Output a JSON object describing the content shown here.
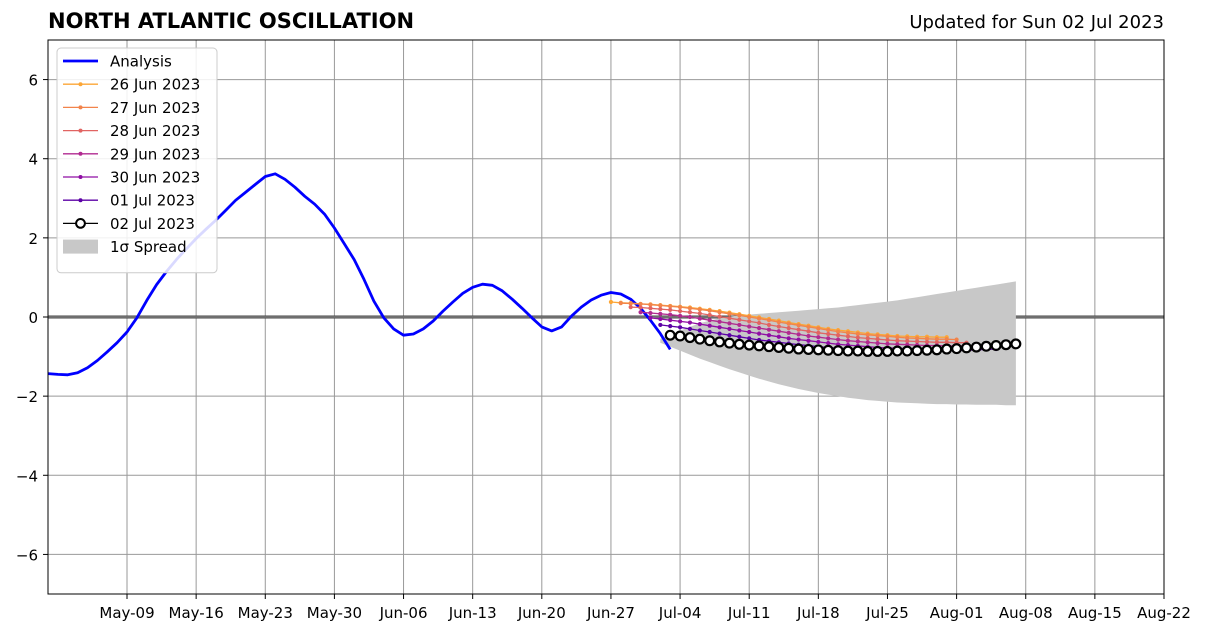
{
  "chart_data": {
    "type": "line",
    "title": "NORTH ATLANTIC OSCILLATION",
    "subtitle": "Updated for Sun 02 Jul 2023",
    "xlabel": "",
    "ylabel": "",
    "ylim": [
      -7,
      7
    ],
    "xlim": [
      "2023-05-01",
      "2023-08-22"
    ],
    "grid": true,
    "legend_position": "top-left",
    "yticks": [
      6,
      4,
      2,
      0,
      -2,
      -4,
      -6
    ],
    "ytick_labels": [
      "6",
      "4",
      "2",
      "0",
      "−2",
      "−4",
      "−6"
    ],
    "xticks": [
      "2023-05-09",
      "2023-05-16",
      "2023-05-23",
      "2023-05-30",
      "2023-06-06",
      "2023-06-13",
      "2023-06-20",
      "2023-06-27",
      "2023-07-04",
      "2023-07-11",
      "2023-07-18",
      "2023-07-25",
      "2023-08-01",
      "2023-08-08",
      "2023-08-15",
      "2023-08-22"
    ],
    "xtick_labels": [
      "May-09",
      "May-16",
      "May-23",
      "May-30",
      "Jun-06",
      "Jun-13",
      "Jun-20",
      "Jun-27",
      "Jul-04",
      "Jul-11",
      "Jul-18",
      "Jul-25",
      "Aug-01",
      "Aug-08",
      "Aug-15",
      "Aug-22"
    ],
    "series": [
      {
        "name": "Analysis",
        "color": "#0000ff",
        "style": "line",
        "start": "2023-05-01",
        "values": [
          -1.43,
          -1.45,
          -1.46,
          -1.41,
          -1.28,
          -1.1,
          -0.88,
          -0.65,
          -0.38,
          -0.02,
          0.42,
          0.82,
          1.15,
          1.45,
          1.72,
          1.98,
          2.22,
          2.45,
          2.7,
          2.95,
          3.15,
          3.35,
          3.55,
          3.62,
          3.48,
          3.28,
          3.05,
          2.85,
          2.6,
          2.25,
          1.85,
          1.45,
          0.95,
          0.4,
          -0.02,
          -0.3,
          -0.46,
          -0.43,
          -0.3,
          -0.1,
          0.15,
          0.38,
          0.6,
          0.75,
          0.83,
          0.8,
          0.66,
          0.45,
          0.22,
          -0.02,
          -0.25,
          -0.35,
          -0.25,
          0.02,
          0.25,
          0.43,
          0.55,
          0.62,
          0.58,
          0.45,
          0.22,
          -0.08,
          -0.42,
          -0.82
        ]
      },
      {
        "name": "26 Jun 2023",
        "color": "#fca636",
        "style": "small-dots",
        "start": "2023-06-27",
        "values": [
          0.38,
          0.36,
          0.35,
          0.33,
          0.32,
          0.3,
          0.28,
          0.26,
          0.24,
          0.21,
          0.18,
          0.15,
          0.11,
          0.07,
          0.03,
          -0.01,
          -0.05,
          -0.09,
          -0.14,
          -0.18,
          -0.22,
          -0.26,
          -0.3,
          -0.33,
          -0.36,
          -0.39,
          -0.42,
          -0.44,
          -0.46,
          -0.48,
          -0.49,
          -0.5,
          -0.5,
          -0.51,
          -0.51
        ]
      },
      {
        "name": "27 Jun 2023",
        "color": "#f2844b",
        "style": "small-dots",
        "start": "2023-06-28",
        "values": [
          0.35,
          0.34,
          0.33,
          0.31,
          0.29,
          0.27,
          0.25,
          0.22,
          0.19,
          0.16,
          0.12,
          0.08,
          0.04,
          0.0,
          -0.04,
          -0.08,
          -0.13,
          -0.17,
          -0.21,
          -0.25,
          -0.29,
          -0.33,
          -0.37,
          -0.4,
          -0.43,
          -0.45,
          -0.47,
          -0.49,
          -0.51,
          -0.53,
          -0.54,
          -0.55,
          -0.56,
          -0.56,
          -0.57
        ]
      },
      {
        "name": "28 Jun 2023",
        "color": "#e16462",
        "style": "small-dots",
        "start": "2023-06-29",
        "values": [
          0.25,
          0.24,
          0.22,
          0.2,
          0.18,
          0.15,
          0.12,
          0.09,
          0.05,
          0.01,
          -0.03,
          -0.07,
          -0.11,
          -0.15,
          -0.2,
          -0.24,
          -0.28,
          -0.32,
          -0.36,
          -0.4,
          -0.43,
          -0.46,
          -0.49,
          -0.52,
          -0.54,
          -0.56,
          -0.58,
          -0.6,
          -0.61,
          -0.62,
          -0.63,
          -0.64,
          -0.64,
          -0.65,
          -0.65
        ]
      },
      {
        "name": "29 Jun 2023",
        "color": "#b12a90",
        "style": "small-dots",
        "start": "2023-06-30",
        "values": [
          0.12,
          0.1,
          0.08,
          0.06,
          0.03,
          0.0,
          -0.04,
          -0.08,
          -0.12,
          -0.16,
          -0.2,
          -0.24,
          -0.28,
          -0.32,
          -0.36,
          -0.4,
          -0.44,
          -0.48,
          -0.51,
          -0.54,
          -0.57,
          -0.6,
          -0.62,
          -0.64,
          -0.66,
          -0.68,
          -0.69,
          -0.7,
          -0.71,
          -0.72,
          -0.72,
          -0.73,
          -0.73,
          -0.73,
          -0.73
        ]
      },
      {
        "name": "30 Jun 2023",
        "color": "#8f0da4",
        "style": "small-dots",
        "start": "2023-07-01",
        "values": [
          -0.02,
          -0.05,
          -0.08,
          -0.11,
          -0.14,
          -0.18,
          -0.22,
          -0.26,
          -0.3,
          -0.34,
          -0.38,
          -0.42,
          -0.46,
          -0.5,
          -0.54,
          -0.57,
          -0.6,
          -0.63,
          -0.66,
          -0.69,
          -0.71,
          -0.73,
          -0.75,
          -0.77,
          -0.78,
          -0.79,
          -0.8,
          -0.8,
          -0.81,
          -0.81,
          -0.81,
          -0.81,
          -0.8,
          -0.8,
          -0.79
        ]
      },
      {
        "name": "01 Jul 2023",
        "color": "#5c01a6",
        "style": "small-dots",
        "start": "2023-07-02",
        "values": [
          -0.2,
          -0.23,
          -0.26,
          -0.3,
          -0.34,
          -0.38,
          -0.42,
          -0.46,
          -0.5,
          -0.54,
          -0.58,
          -0.61,
          -0.64,
          -0.67,
          -0.7,
          -0.72,
          -0.75,
          -0.77,
          -0.79,
          -0.8,
          -0.82,
          -0.83,
          -0.84,
          -0.85,
          -0.85,
          -0.86,
          -0.86,
          -0.86,
          -0.86,
          -0.85,
          -0.85,
          -0.84,
          -0.83,
          -0.82,
          -0.81
        ]
      },
      {
        "name": "02 Jul 2023",
        "color": "#000000",
        "style": "open-circles",
        "start": "2023-07-03",
        "values": [
          -0.46,
          -0.48,
          -0.52,
          -0.56,
          -0.6,
          -0.63,
          -0.66,
          -0.69,
          -0.71,
          -0.73,
          -0.75,
          -0.77,
          -0.79,
          -0.81,
          -0.82,
          -0.83,
          -0.84,
          -0.85,
          -0.86,
          -0.86,
          -0.87,
          -0.87,
          -0.87,
          -0.86,
          -0.86,
          -0.85,
          -0.84,
          -0.83,
          -0.81,
          -0.8,
          -0.78,
          -0.76,
          -0.74,
          -0.72,
          -0.7,
          -0.68
        ]
      }
    ],
    "spread": {
      "name": "1σ Spread",
      "color": "#c8c8c8",
      "start": "2023-07-02",
      "upper": [
        -0.55,
        -0.45,
        -0.35,
        -0.25,
        -0.16,
        -0.09,
        -0.03,
        0.01,
        0.04,
        0.06,
        0.08,
        0.1,
        0.12,
        0.14,
        0.16,
        0.18,
        0.2,
        0.22,
        0.24,
        0.27,
        0.3,
        0.33,
        0.36,
        0.39,
        0.42,
        0.46,
        0.5,
        0.54,
        0.58,
        0.62,
        0.66,
        0.7,
        0.74,
        0.78,
        0.82,
        0.86,
        0.9
      ],
      "lower": [
        -0.65,
        -0.75,
        -0.85,
        -0.95,
        -1.05,
        -1.14,
        -1.23,
        -1.32,
        -1.4,
        -1.48,
        -1.56,
        -1.63,
        -1.7,
        -1.76,
        -1.82,
        -1.87,
        -1.92,
        -1.96,
        -2.0,
        -2.04,
        -2.07,
        -2.1,
        -2.12,
        -2.14,
        -2.16,
        -2.17,
        -2.18,
        -2.19,
        -2.2,
        -2.2,
        -2.21,
        -2.21,
        -2.22,
        -2.22,
        -2.22,
        -2.23,
        -2.23
      ]
    }
  }
}
